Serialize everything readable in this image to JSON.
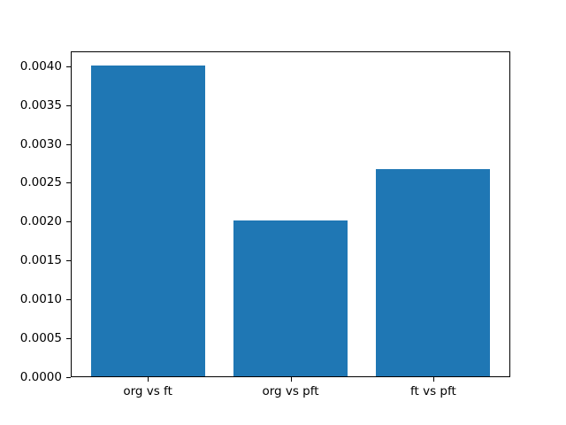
{
  "chart_data": {
    "type": "bar",
    "title": "",
    "xlabel": "",
    "ylabel": "",
    "categories": [
      "org vs ft",
      "org vs pft",
      "ft vs pft"
    ],
    "values": [
      0.00401,
      0.00202,
      0.00268
    ],
    "bar_color": "#1f77b4",
    "bar_width": 0.8,
    "xlim": [
      -0.54,
      2.54
    ],
    "ylim": [
      0,
      0.00419
    ],
    "ytick_values": [
      0,
      0.0005,
      0.001,
      0.0015,
      0.002,
      0.0025,
      0.003,
      0.0035,
      0.004
    ],
    "ytick_labels": [
      "0.0000",
      "0.0005",
      "0.0010",
      "0.0015",
      "0.0020",
      "0.0025",
      "0.0030",
      "0.0035",
      "0.0040"
    ],
    "grid": false,
    "legend_position": "none",
    "axis_color": "#000000",
    "background": "#ffffff"
  }
}
